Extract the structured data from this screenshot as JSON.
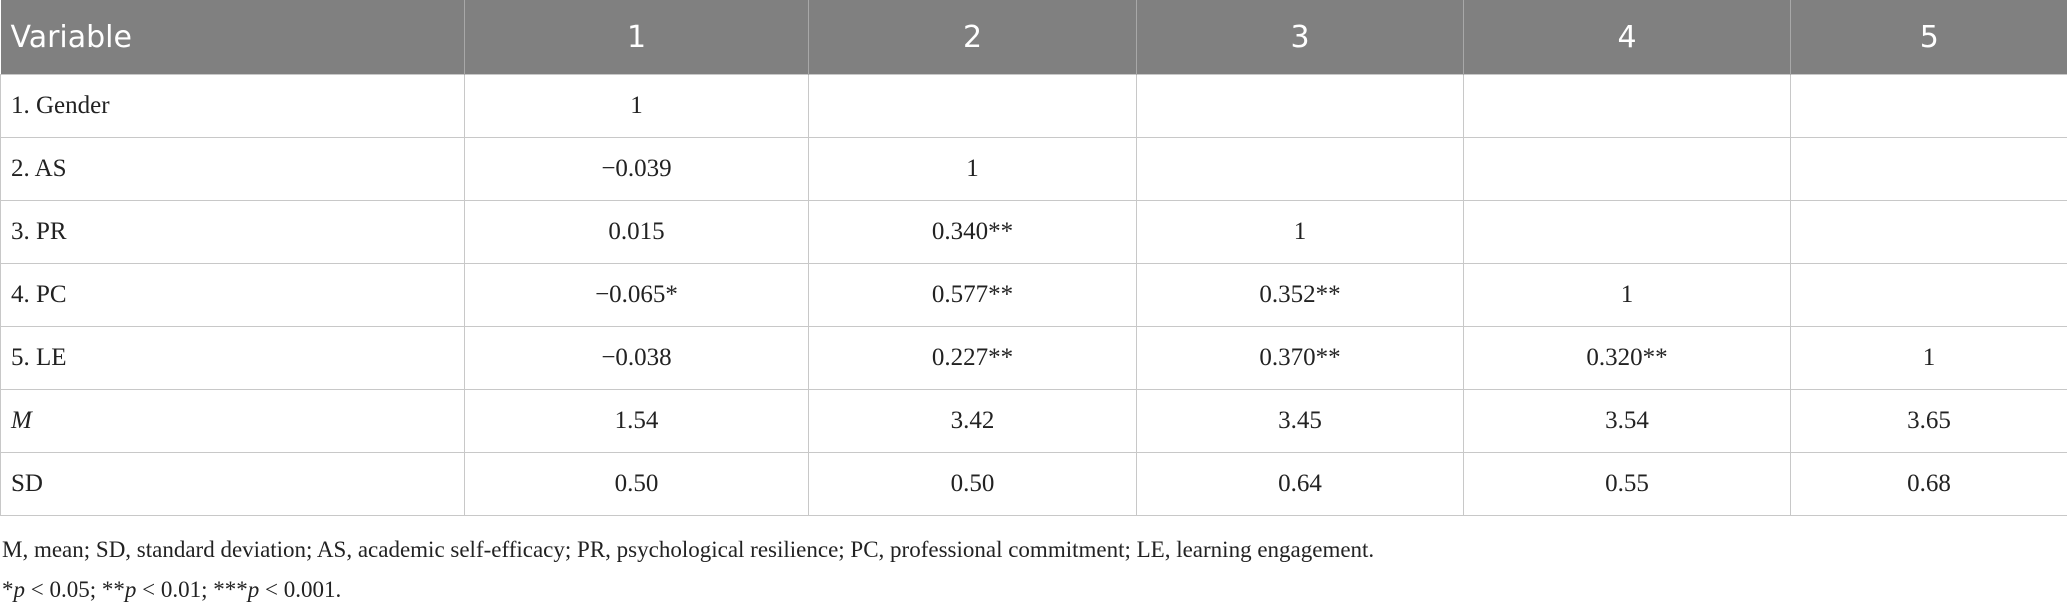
{
  "table": {
    "header": [
      "Variable",
      "1",
      "2",
      "3",
      "4",
      "5"
    ],
    "rows": [
      [
        "1. Gender",
        "1"
      ],
      [
        "2. AS",
        "−0.039",
        "1"
      ],
      [
        "3. PR",
        "0.015",
        "0.340**",
        "1"
      ],
      [
        "4. PC",
        "−0.065*",
        "0.577**",
        "0.352**",
        "1"
      ],
      [
        "5. LE",
        "−0.038",
        "0.227**",
        "0.370**",
        "0.320**",
        "1"
      ],
      [
        "M",
        "1.54",
        "3.42",
        "3.45",
        "3.54",
        "3.65"
      ],
      [
        "SD",
        "0.50",
        "0.50",
        "0.64",
        "0.55",
        "0.68"
      ]
    ]
  },
  "notes": [
    "M, mean; SD, standard deviation; AS, academic self-efficacy; PR, psychological resilience; PC, professional commitment; LE, learning engagement.",
    [
      "*",
      "p",
      " < 0.05; **",
      "p",
      " < 0.01; ***",
      "p",
      " < 0.001."
    ]
  ]
}
